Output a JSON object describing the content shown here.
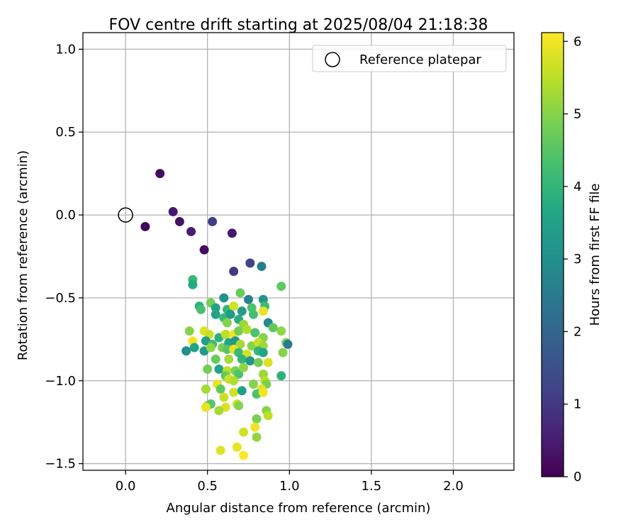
{
  "chart_data": {
    "type": "scatter",
    "title": "FOV centre drift starting at 2025/08/04 21:18:38",
    "xlabel": "Angular distance from reference (arcmin)",
    "ylabel": "Rotation from reference (arcmin)",
    "xlim": [
      -0.26,
      2.37
    ],
    "ylim": [
      -1.54,
      1.1
    ],
    "xticks": [
      0.0,
      0.5,
      1.0,
      1.5,
      2.0
    ],
    "xtick_labels": [
      "0.0",
      "0.5",
      "1.0",
      "1.5",
      "2.0"
    ],
    "yticks": [
      1.0,
      0.5,
      0.0,
      -0.5,
      -1.0,
      -1.5
    ],
    "ytick_labels": [
      "1.0",
      "0.5",
      "0.0",
      "−0.5",
      "−1.0",
      "−1.5"
    ],
    "grid": true,
    "legend": {
      "position": "top-right",
      "entries": [
        "Reference platepar"
      ]
    },
    "reference_point": {
      "name": "Reference platepar",
      "x": 0.0,
      "y": 0.0
    },
    "colorbar": {
      "label": "Hours from first FF file",
      "min": 0,
      "max": 6.12,
      "ticks": [
        0,
        1,
        2,
        3,
        4,
        5,
        6
      ],
      "tick_labels": [
        "0",
        "1",
        "2",
        "3",
        "4",
        "5",
        "6"
      ],
      "colormap": "viridis"
    },
    "points": [
      {
        "x": 0.21,
        "y": 0.25,
        "t": 0.2
      },
      {
        "x": 0.12,
        "y": -0.07,
        "t": 0.1
      },
      {
        "x": 0.29,
        "y": 0.02,
        "t": 0.4
      },
      {
        "x": 0.33,
        "y": -0.04,
        "t": 0.3
      },
      {
        "x": 0.4,
        "y": -0.1,
        "t": 0.5
      },
      {
        "x": 0.48,
        "y": -0.21,
        "t": 0.2
      },
      {
        "x": 0.53,
        "y": -0.04,
        "t": 1.1
      },
      {
        "x": 0.65,
        "y": -0.11,
        "t": 0.4
      },
      {
        "x": 0.66,
        "y": -0.34,
        "t": 1.0
      },
      {
        "x": 0.76,
        "y": -0.29,
        "t": 1.2
      },
      {
        "x": 0.83,
        "y": -0.31,
        "t": 2.6
      },
      {
        "x": 0.41,
        "y": -0.39,
        "t": 4.1
      },
      {
        "x": 0.41,
        "y": -0.42,
        "t": 3.7
      },
      {
        "x": 0.95,
        "y": -0.43,
        "t": 4.6
      },
      {
        "x": 0.7,
        "y": -0.47,
        "t": 4.7
      },
      {
        "x": 0.6,
        "y": -0.5,
        "t": 3.1
      },
      {
        "x": 0.75,
        "y": -0.51,
        "t": 2.7
      },
      {
        "x": 0.84,
        "y": -0.51,
        "t": 3.2
      },
      {
        "x": 0.85,
        "y": -0.55,
        "t": 4.2
      },
      {
        "x": 0.52,
        "y": -0.53,
        "t": 4.8
      },
      {
        "x": 0.45,
        "y": -0.55,
        "t": 3.9
      },
      {
        "x": 0.46,
        "y": -0.57,
        "t": 4.3
      },
      {
        "x": 0.55,
        "y": -0.56,
        "t": 3.5
      },
      {
        "x": 0.62,
        "y": -0.57,
        "t": 4.0
      },
      {
        "x": 0.66,
        "y": -0.55,
        "t": 5.7
      },
      {
        "x": 0.71,
        "y": -0.58,
        "t": 3.4
      },
      {
        "x": 0.77,
        "y": -0.56,
        "t": 4.4
      },
      {
        "x": 0.84,
        "y": -0.58,
        "t": 5.9
      },
      {
        "x": 0.55,
        "y": -0.6,
        "t": 3.6
      },
      {
        "x": 0.6,
        "y": -0.62,
        "t": 4.1
      },
      {
        "x": 0.64,
        "y": -0.6,
        "t": 3.3
      },
      {
        "x": 0.69,
        "y": -0.63,
        "t": 3.8
      },
      {
        "x": 0.78,
        "y": -0.6,
        "t": 4.3
      },
      {
        "x": 0.62,
        "y": -0.65,
        "t": 5.0
      },
      {
        "x": 0.72,
        "y": -0.66,
        "t": 5.2
      },
      {
        "x": 0.87,
        "y": -0.65,
        "t": 2.9
      },
      {
        "x": 0.9,
        "y": -0.68,
        "t": 4.6
      },
      {
        "x": 0.95,
        "y": -0.7,
        "t": 5.1
      },
      {
        "x": 0.39,
        "y": -0.7,
        "t": 5.0
      },
      {
        "x": 0.48,
        "y": -0.7,
        "t": 5.8
      },
      {
        "x": 0.51,
        "y": -0.72,
        "t": 5.6
      },
      {
        "x": 0.57,
        "y": -0.74,
        "t": 3.9
      },
      {
        "x": 0.61,
        "y": -0.72,
        "t": 5.5
      },
      {
        "x": 0.66,
        "y": -0.72,
        "t": 6.0
      },
      {
        "x": 0.69,
        "y": -0.7,
        "t": 4.8
      },
      {
        "x": 0.74,
        "y": -0.69,
        "t": 5.4
      },
      {
        "x": 0.79,
        "y": -0.71,
        "t": 4.4
      },
      {
        "x": 0.84,
        "y": -0.74,
        "t": 5.0
      },
      {
        "x": 0.98,
        "y": -0.77,
        "t": 4.9
      },
      {
        "x": 0.99,
        "y": -0.78,
        "t": 2.6
      },
      {
        "x": 0.41,
        "y": -0.76,
        "t": 6.0
      },
      {
        "x": 0.42,
        "y": -0.8,
        "t": 3.5
      },
      {
        "x": 0.49,
        "y": -0.76,
        "t": 3.4
      },
      {
        "x": 0.53,
        "y": -0.78,
        "t": 4.2
      },
      {
        "x": 0.59,
        "y": -0.8,
        "t": 4.9
      },
      {
        "x": 0.63,
        "y": -0.77,
        "t": 3.6
      },
      {
        "x": 0.67,
        "y": -0.76,
        "t": 3.2
      },
      {
        "x": 0.7,
        "y": -0.78,
        "t": 5.3
      },
      {
        "x": 0.77,
        "y": -0.79,
        "t": 5.0
      },
      {
        "x": 0.81,
        "y": -0.77,
        "t": 5.6
      },
      {
        "x": 0.84,
        "y": -0.79,
        "t": 5.2
      },
      {
        "x": 0.37,
        "y": -0.82,
        "t": 3.0
      },
      {
        "x": 0.48,
        "y": -0.82,
        "t": 3.3
      },
      {
        "x": 0.52,
        "y": -0.8,
        "t": 5.1
      },
      {
        "x": 0.62,
        "y": -0.81,
        "t": 4.5
      },
      {
        "x": 0.66,
        "y": -0.81,
        "t": 5.9
      },
      {
        "x": 0.69,
        "y": -0.83,
        "t": 4.1
      },
      {
        "x": 0.74,
        "y": -0.84,
        "t": 5.7
      },
      {
        "x": 0.81,
        "y": -0.82,
        "t": 4.0
      },
      {
        "x": 0.84,
        "y": -0.83,
        "t": 3.6
      },
      {
        "x": 0.96,
        "y": -0.83,
        "t": 5.0
      },
      {
        "x": 0.55,
        "y": -0.87,
        "t": 4.7
      },
      {
        "x": 0.63,
        "y": -0.87,
        "t": 5.3
      },
      {
        "x": 0.71,
        "y": -0.87,
        "t": 4.0
      },
      {
        "x": 0.76,
        "y": -0.88,
        "t": 3.2
      },
      {
        "x": 0.81,
        "y": -0.89,
        "t": 4.8
      },
      {
        "x": 0.87,
        "y": -0.89,
        "t": 5.8
      },
      {
        "x": 0.5,
        "y": -0.93,
        "t": 4.8
      },
      {
        "x": 0.57,
        "y": -0.93,
        "t": 3.5
      },
      {
        "x": 0.62,
        "y": -0.94,
        "t": 5.5
      },
      {
        "x": 0.67,
        "y": -0.94,
        "t": 4.9
      },
      {
        "x": 0.69,
        "y": -0.96,
        "t": 4.4
      },
      {
        "x": 0.72,
        "y": -0.92,
        "t": 5.1
      },
      {
        "x": 0.84,
        "y": -0.96,
        "t": 5.2
      },
      {
        "x": 0.95,
        "y": -0.97,
        "t": 3.9
      },
      {
        "x": 0.61,
        "y": -0.97,
        "t": 4.6
      },
      {
        "x": 0.63,
        "y": -0.99,
        "t": 5.6
      },
      {
        "x": 0.66,
        "y": -1.0,
        "t": 5.4
      },
      {
        "x": 0.85,
        "y": -1.0,
        "t": 5.5
      },
      {
        "x": 0.56,
        "y": -1.02,
        "t": 5.9
      },
      {
        "x": 0.78,
        "y": -1.02,
        "t": 5.0
      },
      {
        "x": 0.86,
        "y": -1.02,
        "t": 4.9
      },
      {
        "x": 0.49,
        "y": -1.05,
        "t": 5.3
      },
      {
        "x": 0.58,
        "y": -1.05,
        "t": 4.6
      },
      {
        "x": 0.66,
        "y": -1.07,
        "t": 5.7
      },
      {
        "x": 0.71,
        "y": -1.06,
        "t": 3.4
      },
      {
        "x": 0.83,
        "y": -1.05,
        "t": 5.8
      },
      {
        "x": 0.8,
        "y": -1.08,
        "t": 4.4
      },
      {
        "x": 0.84,
        "y": -1.07,
        "t": 6.0
      },
      {
        "x": 0.6,
        "y": -1.1,
        "t": 5.6
      },
      {
        "x": 0.5,
        "y": -1.15,
        "t": 5.1
      },
      {
        "x": 0.52,
        "y": -1.14,
        "t": 4.5
      },
      {
        "x": 0.49,
        "y": -1.16,
        "t": 5.9
      },
      {
        "x": 0.61,
        "y": -1.16,
        "t": 5.8
      },
      {
        "x": 0.68,
        "y": -1.14,
        "t": 5.7
      },
      {
        "x": 0.69,
        "y": -1.15,
        "t": 5.0
      },
      {
        "x": 0.57,
        "y": -1.18,
        "t": 5.3
      },
      {
        "x": 0.86,
        "y": -1.18,
        "t": 5.0
      },
      {
        "x": 0.87,
        "y": -1.21,
        "t": 5.5
      },
      {
        "x": 0.8,
        "y": -1.23,
        "t": 4.9
      },
      {
        "x": 0.79,
        "y": -1.28,
        "t": 6.0
      },
      {
        "x": 0.72,
        "y": -1.31,
        "t": 5.7
      },
      {
        "x": 0.8,
        "y": -1.34,
        "t": 5.1
      },
      {
        "x": 0.68,
        "y": -1.4,
        "t": 5.9
      },
      {
        "x": 0.58,
        "y": -1.42,
        "t": 5.8
      },
      {
        "x": 0.72,
        "y": -1.45,
        "t": 6.1
      }
    ]
  }
}
